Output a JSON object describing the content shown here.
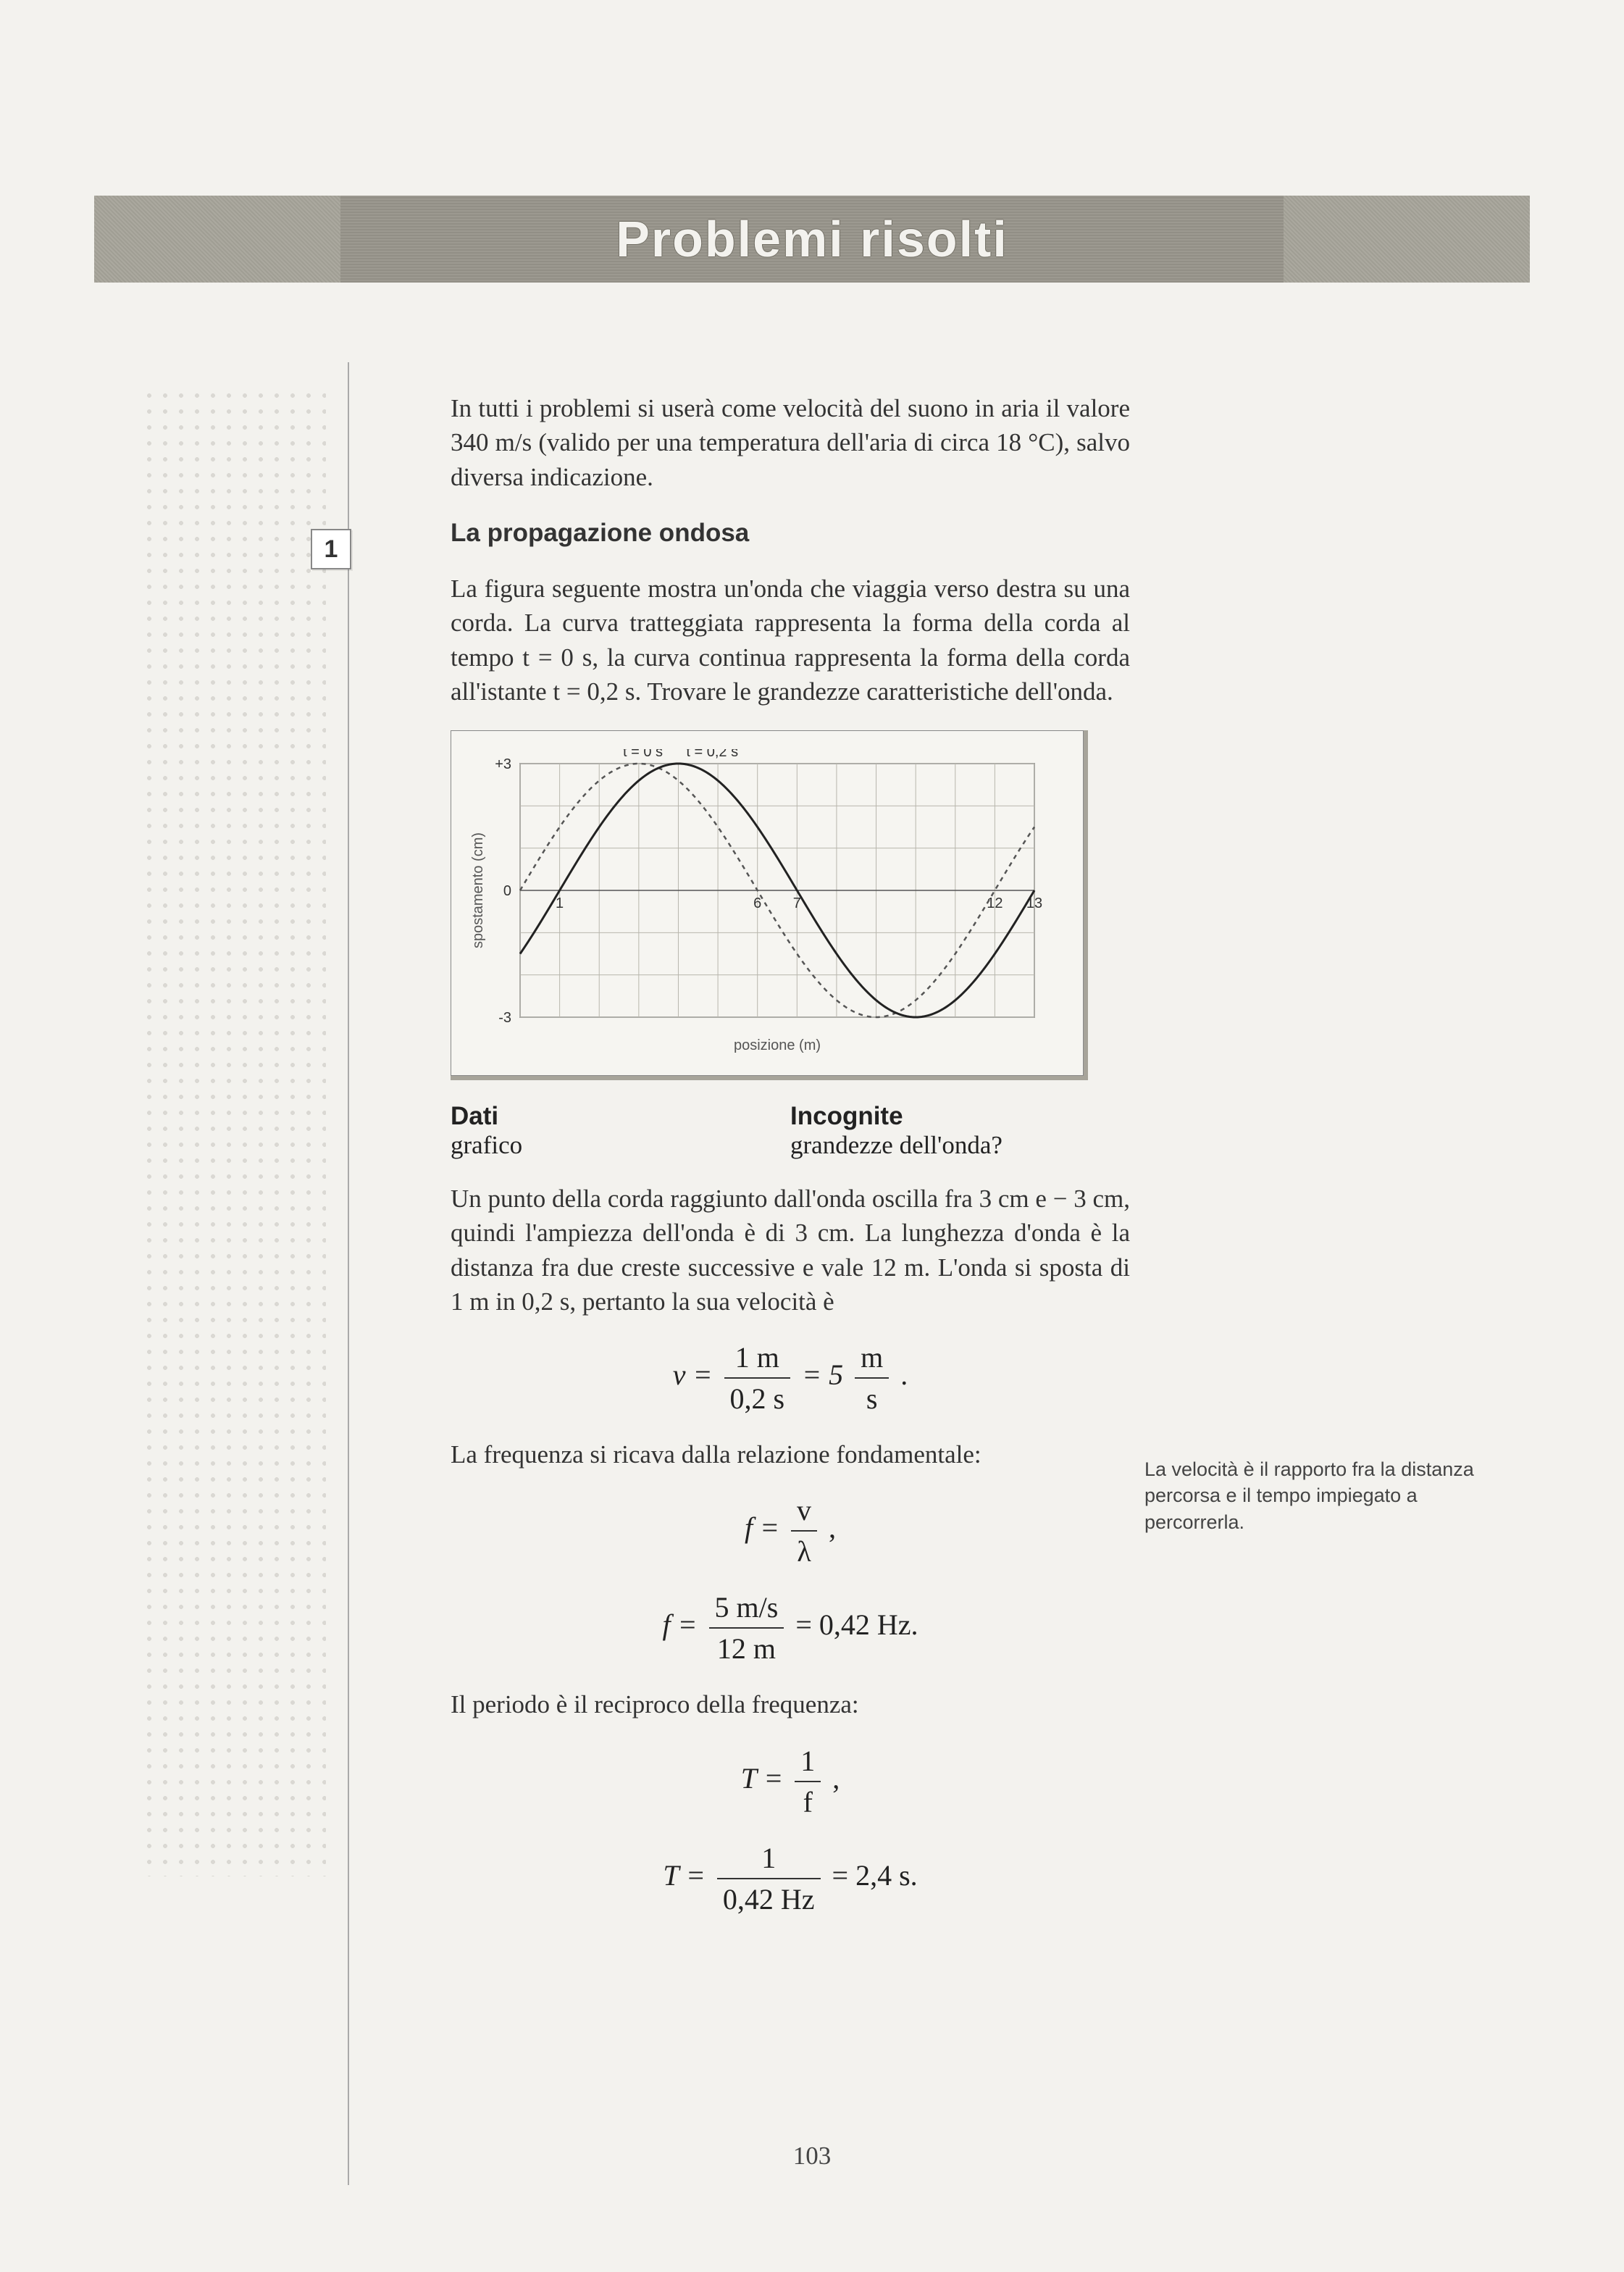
{
  "header": {
    "title": "Problemi risolti"
  },
  "intro": "In tutti i problemi si userà come velocità del suono in aria il valore 340 m/s (valido per una temperatura dell'aria di circa 18 °C), salvo diversa indicazione.",
  "problem": {
    "number": "1",
    "title": "La propagazione ondosa",
    "text": "La figura seguente mostra un'onda che viaggia verso destra su una corda. La curva tratteggiata rappresenta la forma della corda al tempo t = 0 s, la curva continua rappresenta la forma della corda all'istante t = 0,2 s. Trovare le grandezze caratteristiche dell'onda."
  },
  "chart": {
    "type": "line",
    "x_axis_label": "posizione (m)",
    "y_axis_label": "spostamento (cm)",
    "x_min": 0,
    "x_max": 13,
    "x_tick_step": 1,
    "x_tick_labels": [
      1,
      6,
      7,
      12,
      13
    ],
    "y_min": -3,
    "y_max": 3,
    "y_tick_labels": [
      "+3",
      "0",
      "-3"
    ],
    "grid_color": "#b8b6ad",
    "axis_color": "#555",
    "background_color": "#f6f5f1",
    "label_font_family": "Arial",
    "label_fontsize": 20,
    "series": [
      {
        "name": "t0_dashed",
        "legend": "t = 0 s",
        "amplitude_cm": 3,
        "wavelength_m": 12,
        "phase_shift_m": 0,
        "stroke": "#555555",
        "stroke_width": 2.5,
        "dash": "6,6"
      },
      {
        "name": "t1_solid",
        "legend": "t = 0,2 s",
        "amplitude_cm": 3,
        "wavelength_m": 12,
        "phase_shift_m": 1,
        "stroke": "#222222",
        "stroke_width": 3,
        "dash": "none"
      }
    ],
    "legend_labels": {
      "t0": "t = 0 s",
      "t1": "t = 0,2 s"
    }
  },
  "dati": {
    "dati_h": "Dati",
    "dati_v": "grafico",
    "incog_h": "Incognite",
    "incog_v": "grandezze dell'onda?"
  },
  "solution": {
    "para1": "Un punto della corda raggiunto dall'onda oscilla fra 3 cm e − 3 cm, quindi l'ampiezza dell'onda è di 3 cm. La lunghezza d'onda è la distanza fra due creste successive e vale 12 m. L'onda si sposta di 1 m in 0,2 s, pertanto la sua velocità è",
    "eq_v": {
      "lhs": "v =",
      "num": "1 m",
      "den": "0,2 s",
      "eq": "= 5",
      "unit_num": "m",
      "unit_den": "s",
      "tail": "."
    },
    "para2": "La frequenza si ricava dalla relazione fondamentale:",
    "eq_f1": {
      "lhs": "f =",
      "num": "v",
      "den": "λ",
      "tail": ","
    },
    "eq_f2": {
      "lhs": "f =",
      "num": "5 m/s",
      "den": "12 m",
      "tail": "= 0,42 Hz."
    },
    "para3": "Il periodo è il reciproco della frequenza:",
    "eq_T1": {
      "lhs": "T =",
      "num": "1",
      "den": "f",
      "tail": ","
    },
    "eq_T2": {
      "lhs": "T =",
      "num": "1",
      "den": "0,42 Hz",
      "tail": "= 2,4 s."
    }
  },
  "margin_note": "La velocità è il rapporto fra la distanza percorsa e il tempo impiegato a percorrerla.",
  "page_number": "103"
}
